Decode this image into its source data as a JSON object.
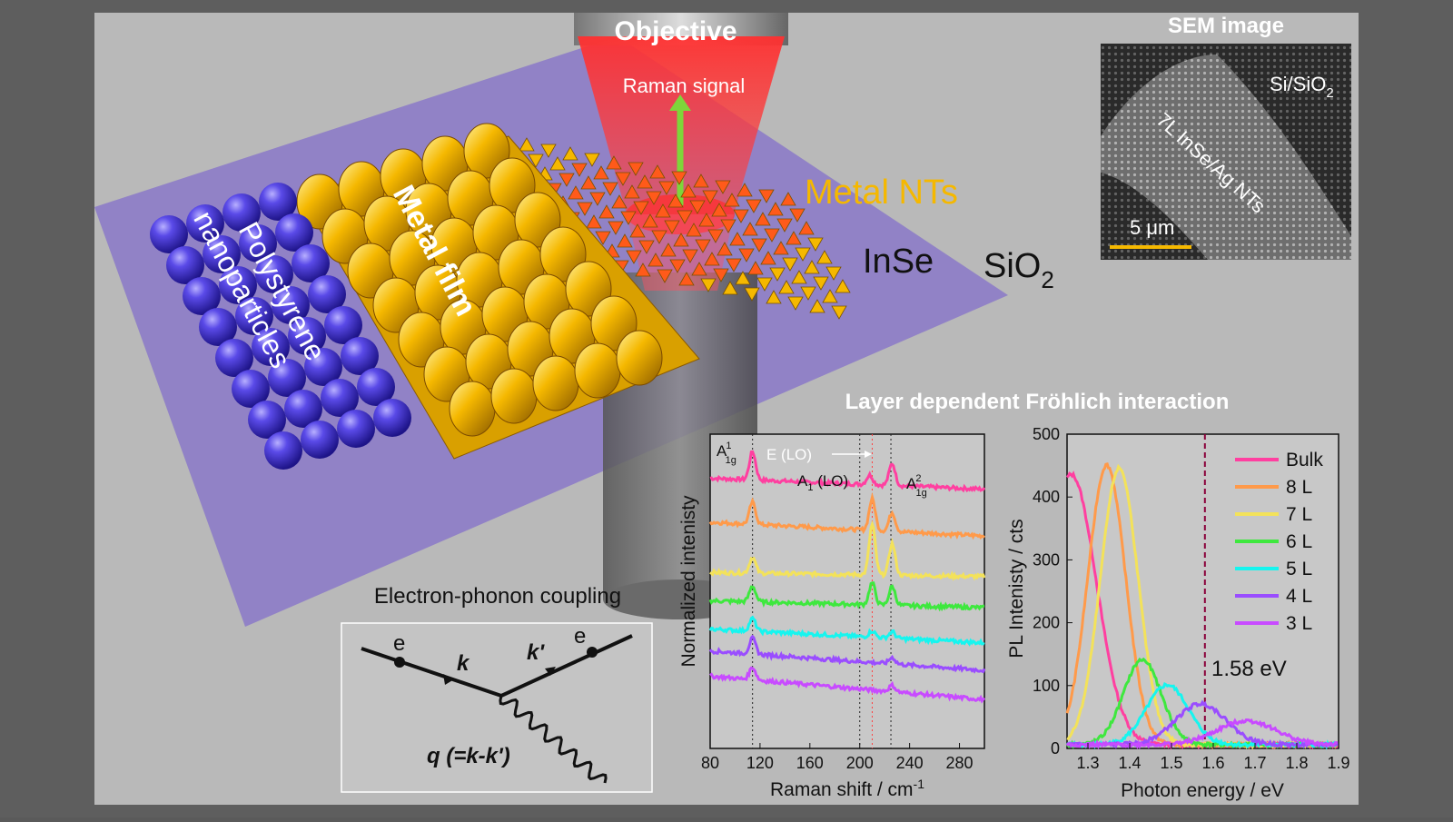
{
  "labels": {
    "objective": "Objective",
    "raman_signal": "Raman signal",
    "metal_nts": "Metal NTs",
    "inse": "InSe",
    "sio2_main": "SiO",
    "sio2_sub": "2",
    "metal_film": "Metal film",
    "polystyrene_line1": "Polystyrene",
    "polystyrene_line2": "nanoparticles",
    "sem_title": "SEM image",
    "sem_substrate": "Si/SiO",
    "sem_substrate_sub": "2",
    "sem_sample": "7L InSe/Ag NTs",
    "sem_scale": "5 μm",
    "coupling_title": "Electron-phonon coupling",
    "feyn_e1": "e",
    "feyn_e2": "e",
    "feyn_k": "k",
    "feyn_kp": "k'",
    "feyn_q": "q (=k-k')",
    "section_title": "Layer dependent Fröhlich interaction"
  },
  "colors": {
    "bulk": "#ff3fa0",
    "8L": "#ff9a4a",
    "7L": "#f3e25a",
    "6L": "#3ee83e",
    "5L": "#16f5ef",
    "4L": "#9a4dff",
    "3L": "#c84bff",
    "gold": "#f5b800",
    "blue_sphere": "#4a3cd8",
    "substrate": "#8a78c8"
  },
  "chart_data": [
    {
      "type": "line",
      "xlabel": "Raman shift / cm",
      "xlabel_sup": "-1",
      "ylabel": "Normalized intenisty",
      "xlim": [
        80,
        300
      ],
      "xticks": [
        80,
        120,
        160,
        200,
        240,
        280
      ],
      "peak_labels": {
        "a1g1": "A",
        "a1g1_sup": "1",
        "a1g1_sub": "1g",
        "elo": "E (LO)",
        "a1lo": "A",
        "a1lo_sub": "1",
        "a1lo_rest": " (LO)",
        "a1g2": "A",
        "a1g2_sup": "2",
        "a1g2_sub": "1g"
      },
      "ref_lines": [
        114,
        200,
        210,
        225
      ],
      "series": [
        {
          "name": "Bulk",
          "offset": 0.86,
          "peaks": [
            [
              114,
              0.09
            ],
            [
              208,
              0.03
            ],
            [
              226,
              0.07
            ]
          ],
          "slope": -0.00016
        },
        {
          "name": "8 L",
          "offset": 0.72,
          "peaks": [
            [
              114,
              0.07
            ],
            [
              210,
              0.1
            ],
            [
              226,
              0.06
            ]
          ],
          "slope": -0.0002
        },
        {
          "name": "7 L",
          "offset": 0.56,
          "peaks": [
            [
              114,
              0.05
            ],
            [
              210,
              0.16
            ],
            [
              226,
              0.1
            ]
          ],
          "slope": -6e-05
        },
        {
          "name": "6 L",
          "offset": 0.47,
          "peaks": [
            [
              114,
              0.05
            ],
            [
              210,
              0.07
            ],
            [
              226,
              0.06
            ]
          ],
          "slope": -0.0001
        },
        {
          "name": "5 L",
          "offset": 0.38,
          "peaks": [
            [
              114,
              0.04
            ],
            [
              210,
              0.02
            ],
            [
              226,
              0.02
            ]
          ],
          "slope": -0.0002
        },
        {
          "name": "4 L",
          "offset": 0.31,
          "peaks": [
            [
              114,
              0.05
            ],
            [
              226,
              0.02
            ]
          ],
          "slope": -0.00028
        },
        {
          "name": "3 L",
          "offset": 0.23,
          "peaks": [
            [
              114,
              0.04
            ],
            [
              226,
              0.02
            ]
          ],
          "slope": -0.00034
        }
      ]
    },
    {
      "type": "line",
      "xlabel": "Photon energy / eV",
      "ylabel": "PL Intenisty / cts",
      "xlim": [
        1.25,
        1.9
      ],
      "ylim": [
        0,
        500
      ],
      "xticks": [
        1.3,
        1.4,
        1.5,
        1.6,
        1.7,
        1.8,
        1.9
      ],
      "yticks": [
        0,
        100,
        200,
        300,
        400,
        500
      ],
      "annotation": "1.58 eV",
      "ref_line_x": 1.58,
      "series": [
        {
          "name": "Bulk",
          "peak": 1.26,
          "amp": 430,
          "width": 0.06
        },
        {
          "name": "8 L",
          "peak": 1.345,
          "amp": 445,
          "width": 0.045
        },
        {
          "name": "7 L",
          "peak": 1.375,
          "amp": 440,
          "width": 0.045
        },
        {
          "name": "6 L",
          "peak": 1.43,
          "amp": 135,
          "width": 0.045
        },
        {
          "name": "5 L",
          "peak": 1.49,
          "amp": 95,
          "width": 0.05
        },
        {
          "name": "4 L",
          "peak": 1.57,
          "amp": 65,
          "width": 0.06
        },
        {
          "name": "3 L",
          "peak": 1.68,
          "amp": 38,
          "width": 0.07
        }
      ]
    }
  ]
}
